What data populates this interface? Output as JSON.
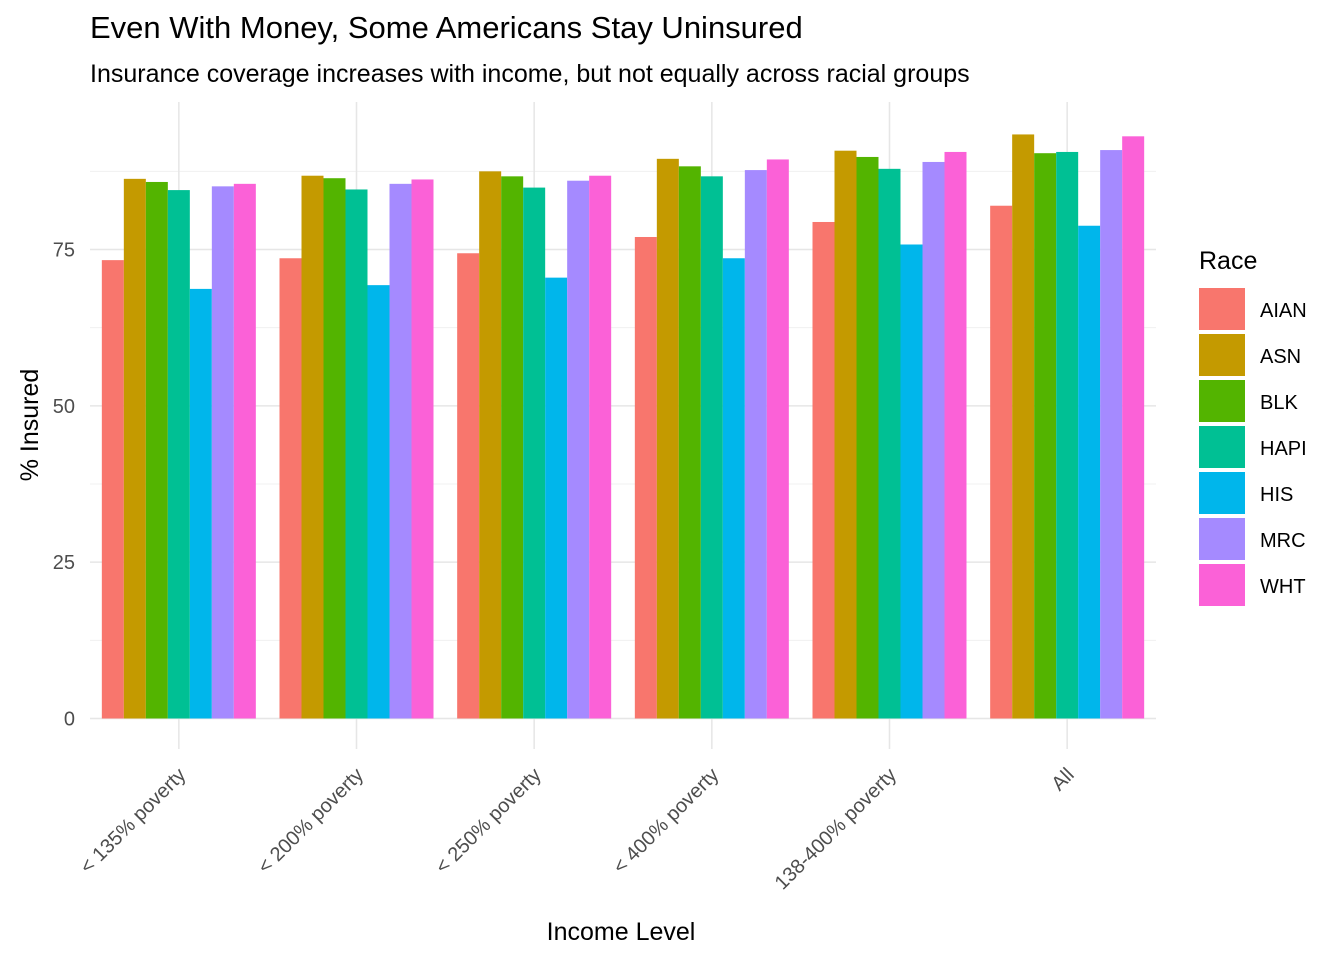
{
  "chart_data": {
    "type": "bar",
    "title": "Even With Money, Some Americans Stay Uninsured",
    "subtitle": "Insurance coverage increases with income, but not equally across racial groups",
    "xlabel": "Income Level",
    "ylabel": "% Insured",
    "ylim": [
      0,
      100
    ],
    "yticks": [
      0,
      25,
      50,
      75
    ],
    "grid": true,
    "legend": {
      "title": "Race",
      "placement": "right"
    },
    "categories": [
      "< 135% poverty",
      "< 200% poverty",
      "< 250% poverty",
      "< 400% poverty",
      "138-400% poverty",
      "All"
    ],
    "series": [
      {
        "name": "AIAN",
        "color": "#F8766D",
        "values": [
          73.3,
          73.6,
          74.4,
          77.0,
          79.4,
          82.0
        ]
      },
      {
        "name": "ASN",
        "color": "#C49A00",
        "values": [
          86.3,
          86.8,
          87.5,
          89.5,
          90.8,
          93.4
        ]
      },
      {
        "name": "BLK",
        "color": "#53B400",
        "values": [
          85.8,
          86.4,
          86.7,
          88.3,
          89.8,
          90.4
        ]
      },
      {
        "name": "HAPI",
        "color": "#00C094",
        "values": [
          84.5,
          84.6,
          84.9,
          86.7,
          87.9,
          90.6
        ]
      },
      {
        "name": "HIS",
        "color": "#00B6EB",
        "values": [
          68.7,
          69.3,
          70.5,
          73.6,
          75.8,
          78.8
        ]
      },
      {
        "name": "MRC",
        "color": "#A58AFF",
        "values": [
          85.1,
          85.5,
          86.0,
          87.7,
          89.0,
          90.9
        ]
      },
      {
        "name": "WHT",
        "color": "#FB61D7",
        "values": [
          85.5,
          86.2,
          86.8,
          89.4,
          90.6,
          93.1
        ]
      }
    ]
  }
}
